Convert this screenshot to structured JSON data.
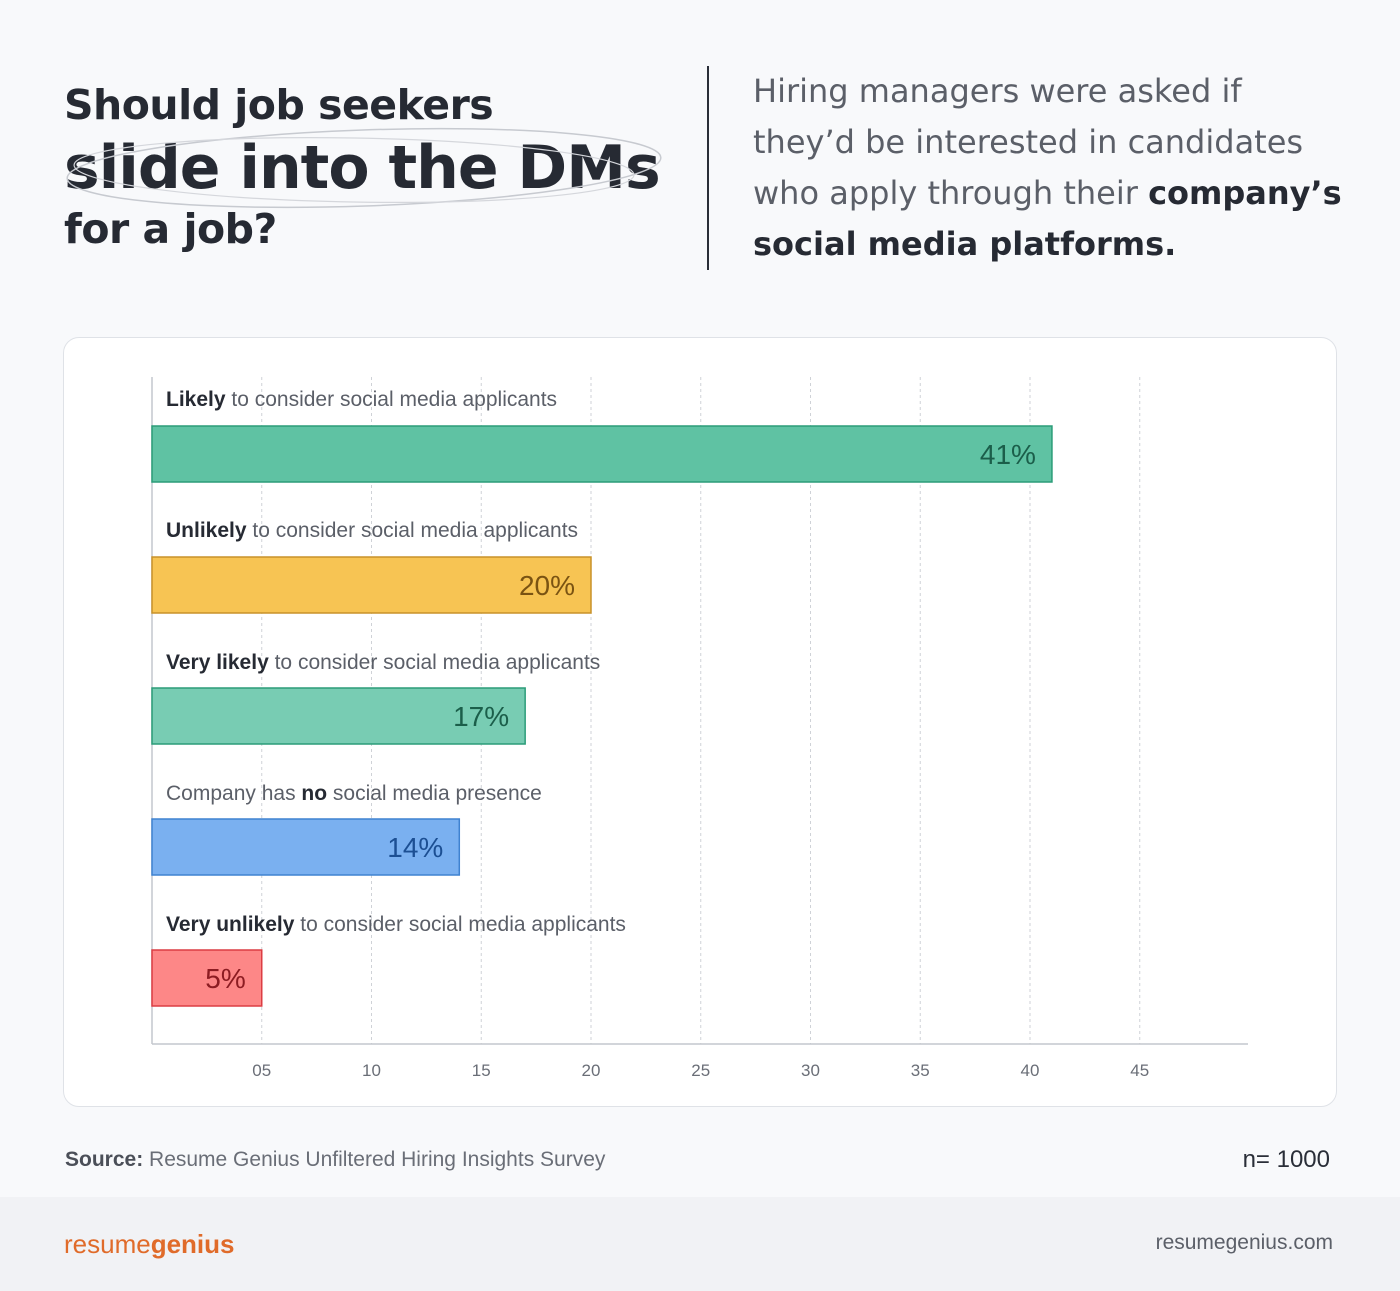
{
  "header": {
    "title_line1": "Should job seekers",
    "title_line2": "slide into the DMs",
    "title_line3": "for a job?",
    "subtitle_plain": "Hiring managers were asked if they’d be interested in candidates who apply through their",
    "subtitle_bold": "company’s social media platforms."
  },
  "colors": {
    "green": "#5fc2a3",
    "green_light": "#78ccb3",
    "green_border": "#2b9c78",
    "yellow": "#f7c453",
    "yellow_border": "#c8922a",
    "blue": "#7ab0f0",
    "blue_border": "#3f82d0",
    "red": "#fd8787",
    "red_border": "#dc3d43"
  },
  "chart_data": {
    "type": "bar",
    "orientation": "horizontal",
    "categories": [
      {
        "bold": "Likely",
        "rest": " to consider social media applicants",
        "bold_first": true
      },
      {
        "bold": "Unlikely",
        "rest": " to consider social media applicants",
        "bold_first": true
      },
      {
        "bold": "Very likely",
        "rest": " to consider social media applicants",
        "bold_first": true
      },
      {
        "pre": "Company has ",
        "bold": "no",
        "rest": " social media presence",
        "bold_first": false
      },
      {
        "bold": "Very unlikely",
        "rest": " to consider social media applicants",
        "bold_first": true
      }
    ],
    "values": [
      41,
      20,
      17,
      14,
      5
    ],
    "value_labels": [
      "41%",
      "20%",
      "17%",
      "14%",
      "5%"
    ],
    "bar_colors": [
      "#5fc2a3",
      "#f7c453",
      "#78ccb3",
      "#7ab0f0",
      "#fd8787"
    ],
    "bar_borders": [
      "#2b9c78",
      "#c8922a",
      "#2b9c78",
      "#3f82d0",
      "#dc3d43"
    ],
    "label_colors": [
      "#1b5e4a",
      "#7a5312",
      "#1b5e4a",
      "#1c4f93",
      "#8c1c22"
    ],
    "xticks": [
      "05",
      "10",
      "15",
      "20",
      "25",
      "30",
      "35",
      "40",
      "45"
    ],
    "xtick_values": [
      5,
      10,
      15,
      20,
      25,
      30,
      35,
      40,
      45
    ],
    "xlim": [
      0,
      50
    ],
    "grid": true
  },
  "footer": {
    "source_label": "Source:",
    "source_text": " Resume Genius Unfiltered Hiring Insights Survey",
    "n": "n= 1000",
    "logo_plain": "resume",
    "logo_bold": "genius",
    "site": "resumegenius.com"
  }
}
